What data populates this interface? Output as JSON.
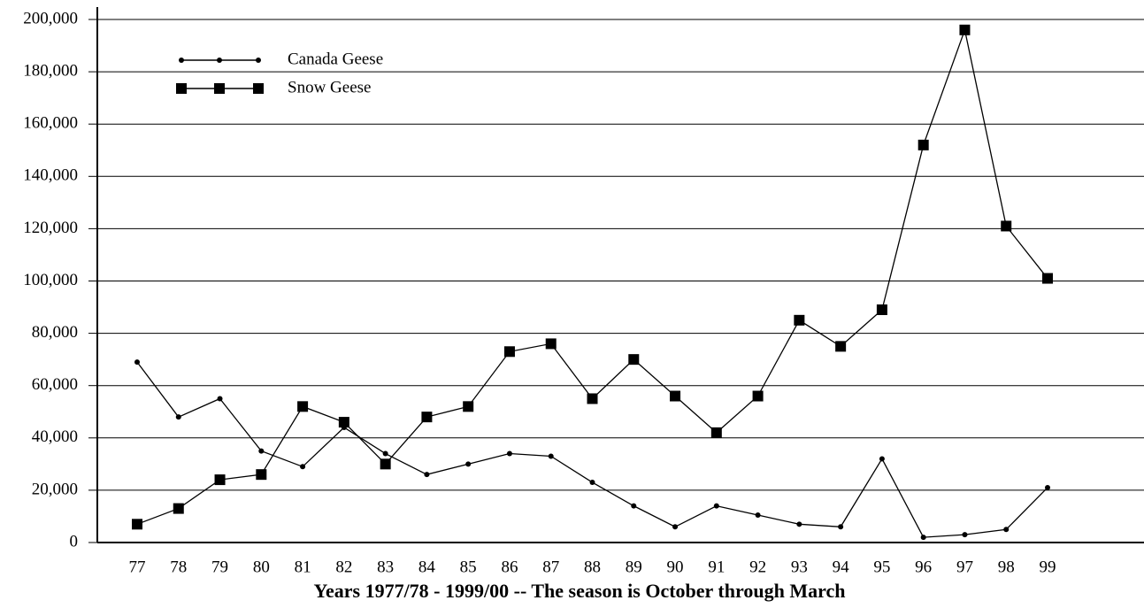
{
  "chart_data": {
    "type": "line",
    "x_label": "Years 1977/78 - 1999/00   --  The season is October through March",
    "categories": [
      "77",
      "78",
      "79",
      "80",
      "81",
      "82",
      "83",
      "84",
      "85",
      "86",
      "87",
      "88",
      "89",
      "90",
      "91",
      "92",
      "93",
      "94",
      "95",
      "96",
      "97",
      "98",
      "99"
    ],
    "series": [
      {
        "name": "Canada Geese",
        "color": "#000000",
        "marker": "dot",
        "values": [
          69000,
          48000,
          55000,
          35000,
          29000,
          44000,
          34000,
          26000,
          30000,
          34000,
          33000,
          23000,
          14000,
          6000,
          14000,
          10500,
          7000,
          6000,
          32000,
          2000,
          3000,
          5000,
          21000
        ]
      },
      {
        "name": "Snow Geese",
        "color": "#000000",
        "marker": "square",
        "values": [
          7000,
          13000,
          24000,
          26000,
          52000,
          46000,
          30000,
          48000,
          52000,
          73000,
          76000,
          55000,
          70000,
          56000,
          42000,
          56000,
          85000,
          75000,
          89000,
          152000,
          196000,
          121000,
          101000
        ]
      }
    ],
    "ylim": [
      0,
      200000
    ],
    "yticks": [
      0,
      {
        "value": 20000,
        "label": "20,000"
      },
      {
        "value": 40000,
        "label": "40,000"
      },
      {
        "value": 60000,
        "label": "60,000"
      },
      {
        "value": 80000,
        "label": "80,000"
      },
      {
        "value": 100000,
        "label": "100,000"
      },
      {
        "value": 120000,
        "label": "120,000"
      },
      {
        "value": 140000,
        "label": "140,000"
      },
      {
        "value": 160000,
        "label": "160,000"
      },
      {
        "value": 180000,
        "label": "180,000"
      },
      {
        "value": 200000,
        "label": "200,000"
      }
    ],
    "grid": true,
    "legend": "top-left"
  }
}
